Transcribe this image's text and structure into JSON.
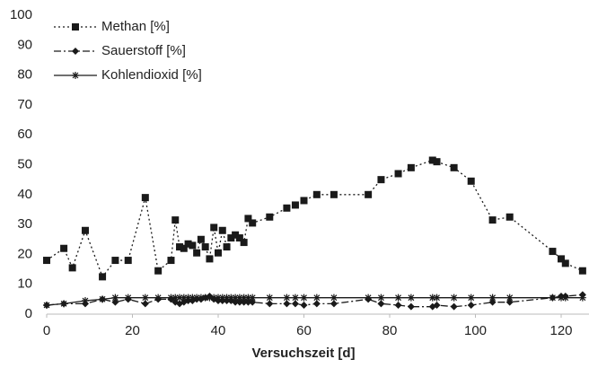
{
  "chart_data": {
    "type": "line",
    "x_label": "Versuchszeit [d]",
    "xlim": [
      0,
      128
    ],
    "xticks": [
      0,
      20,
      40,
      60,
      80,
      100,
      120
    ],
    "ylim": [
      0,
      100
    ],
    "yticks": [
      0,
      10,
      20,
      30,
      40,
      50,
      60,
      70,
      80,
      90,
      100
    ],
    "grid": false,
    "legend": "top-left",
    "series": [
      {
        "name": "Methan [%]",
        "color": "#1a1a1a",
        "marker": "square",
        "line_style": "dotted",
        "x": [
          0,
          4,
          6,
          9,
          13,
          16,
          19,
          23,
          26,
          29,
          30,
          31,
          32,
          33,
          34,
          35,
          36,
          37,
          38,
          39,
          40,
          41,
          42,
          43,
          44,
          45,
          46,
          47,
          48,
          52,
          56,
          58,
          60,
          63,
          67,
          75,
          78,
          82,
          85,
          90,
          91,
          95,
          99,
          104,
          108,
          118,
          120,
          121,
          125
        ],
        "values": [
          18,
          22,
          15.5,
          28,
          12.5,
          18,
          18,
          39,
          14.5,
          18,
          31.5,
          22.5,
          22,
          23.5,
          23,
          20.5,
          25,
          22.5,
          18.5,
          29,
          20.5,
          28,
          22.5,
          25.5,
          26.5,
          25.5,
          24,
          32,
          30.5,
          32.5,
          35.5,
          36.5,
          38,
          40,
          40,
          40,
          45,
          47,
          49,
          51.5,
          51,
          49,
          44.5,
          31.5,
          32.5,
          21,
          18.5,
          17,
          14.5
        ]
      },
      {
        "name": "Sauerstoff [%]",
        "color": "#1a1a1a",
        "marker": "diamond",
        "line_style": "dash-dot",
        "x": [
          0,
          4,
          9,
          13,
          16,
          19,
          23,
          26,
          29,
          30,
          31,
          32,
          33,
          34,
          35,
          36,
          37,
          38,
          39,
          40,
          41,
          42,
          43,
          44,
          45,
          46,
          47,
          48,
          52,
          56,
          58,
          60,
          63,
          67,
          75,
          78,
          82,
          85,
          90,
          91,
          95,
          99,
          104,
          108,
          118,
          120,
          121,
          125
        ],
        "values": [
          3,
          3.5,
          3.5,
          5,
          4,
          5,
          3.5,
          5,
          5,
          4,
          3.5,
          4,
          4.5,
          4.5,
          5,
          5,
          5.5,
          6,
          5,
          4.5,
          4.5,
          4.5,
          4.5,
          4,
          4,
          4,
          4,
          4,
          3.5,
          3.5,
          3.5,
          3,
          3.5,
          3.5,
          5,
          3.5,
          3,
          2.5,
          2.5,
          3,
          2.5,
          3,
          4,
          4,
          5.5,
          6,
          6,
          6.5
        ]
      },
      {
        "name": "Kohlendioxid [%]",
        "color": "#1a1a1a",
        "marker": "star",
        "line_style": "solid",
        "x": [
          0,
          4,
          9,
          13,
          16,
          19,
          23,
          26,
          29,
          30,
          31,
          32,
          33,
          34,
          35,
          36,
          37,
          38,
          39,
          40,
          41,
          42,
          43,
          44,
          45,
          46,
          47,
          48,
          52,
          56,
          58,
          60,
          63,
          67,
          75,
          78,
          82,
          85,
          90,
          91,
          95,
          99,
          104,
          108,
          118,
          120,
          121,
          125
        ],
        "values": [
          3,
          3.5,
          4.5,
          5,
          5.5,
          5.5,
          5.5,
          5.5,
          5.5,
          5.5,
          5.5,
          5.5,
          5.5,
          5.5,
          5.5,
          5.5,
          5.5,
          5.5,
          5.5,
          5.5,
          5.5,
          5.5,
          5.5,
          5.5,
          5.5,
          5.5,
          5.5,
          5.5,
          5.5,
          5.5,
          5.5,
          5.5,
          5.5,
          5.5,
          5.5,
          5.5,
          5.5,
          5.5,
          5.5,
          5.5,
          5.5,
          5.5,
          5.5,
          5.5,
          5.5,
          5.5,
          5.5,
          5.5
        ]
      }
    ]
  }
}
